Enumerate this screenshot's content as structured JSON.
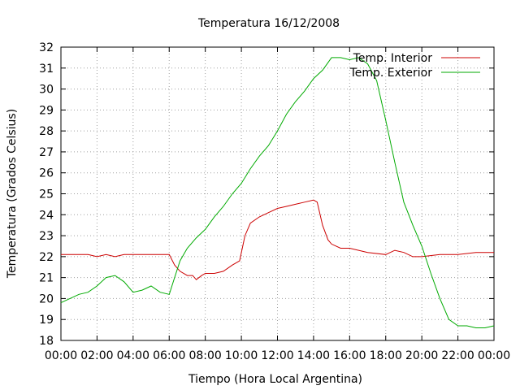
{
  "chart_data": {
    "type": "line",
    "title": "Temperatura 16/12/2008",
    "xlabel": "Tiempo (Hora Local Argentina)",
    "ylabel": "Temperatura (Grados Celsius)",
    "x_unit": "hour",
    "xlim": [
      0,
      24
    ],
    "ylim": [
      18,
      32
    ],
    "grid": true,
    "legend_position": "top-right",
    "x_ticks": [
      {
        "value": 0,
        "label": "00:00"
      },
      {
        "value": 2,
        "label": "02:00"
      },
      {
        "value": 4,
        "label": "04:00"
      },
      {
        "value": 6,
        "label": "06:00"
      },
      {
        "value": 8,
        "label": "08:00"
      },
      {
        "value": 10,
        "label": "10:00"
      },
      {
        "value": 12,
        "label": "12:00"
      },
      {
        "value": 14,
        "label": "14:00"
      },
      {
        "value": 16,
        "label": "16:00"
      },
      {
        "value": 18,
        "label": "18:00"
      },
      {
        "value": 20,
        "label": "20:00"
      },
      {
        "value": 22,
        "label": "22:00"
      },
      {
        "value": 24,
        "label": "00:00"
      }
    ],
    "y_ticks": [
      18,
      19,
      20,
      21,
      22,
      23,
      24,
      25,
      26,
      27,
      28,
      29,
      30,
      31,
      32
    ],
    "series": [
      {
        "name": "Temp. Interior",
        "color": "#cc0000",
        "x": [
          0,
          1,
          1.5,
          2,
          2.5,
          3,
          3.5,
          4,
          4.5,
          5,
          5.5,
          6,
          6.3,
          6.6,
          7,
          7.3,
          7.5,
          7.8,
          8,
          8.5,
          9,
          9.5,
          9.9,
          10.2,
          10.5,
          11,
          11.5,
          12,
          12.5,
          13,
          13.5,
          14,
          14.2,
          14.5,
          14.8,
          15,
          15.5,
          16,
          17,
          18,
          18.5,
          19,
          19.5,
          20,
          21,
          22,
          23,
          24
        ],
        "y": [
          22.1,
          22.1,
          22.1,
          22.0,
          22.1,
          22.0,
          22.1,
          22.1,
          22.1,
          22.1,
          22.1,
          22.1,
          21.6,
          21.3,
          21.1,
          21.1,
          20.9,
          21.1,
          21.2,
          21.2,
          21.3,
          21.6,
          21.8,
          23.0,
          23.6,
          23.9,
          24.1,
          24.3,
          24.4,
          24.5,
          24.6,
          24.7,
          24.6,
          23.5,
          22.8,
          22.6,
          22.4,
          22.4,
          22.2,
          22.1,
          22.3,
          22.2,
          22.0,
          22.0,
          22.1,
          22.1,
          22.2,
          22.2
        ]
      },
      {
        "name": "Temp. Exterior",
        "color": "#00aa00",
        "x": [
          0,
          0.5,
          1,
          1.5,
          2,
          2.5,
          3,
          3.5,
          4,
          4.5,
          5,
          5.5,
          6,
          6.3,
          6.6,
          7,
          7.5,
          8,
          8.5,
          9,
          9.5,
          10,
          10.5,
          11,
          11.5,
          12,
          12.5,
          13,
          13.5,
          14,
          14.5,
          15,
          15.5,
          16,
          16.5,
          17,
          17.5,
          18,
          18.5,
          19,
          19.5,
          20,
          20.5,
          21,
          21.5,
          22,
          22.5,
          23,
          23.5,
          24
        ],
        "y": [
          19.8,
          20.0,
          20.2,
          20.3,
          20.6,
          21.0,
          21.1,
          20.8,
          20.3,
          20.4,
          20.6,
          20.3,
          20.2,
          21.0,
          21.8,
          22.4,
          22.9,
          23.3,
          23.9,
          24.4,
          25.0,
          25.5,
          26.2,
          26.8,
          27.3,
          28.0,
          28.8,
          29.4,
          29.9,
          30.5,
          30.9,
          31.5,
          31.5,
          31.4,
          31.5,
          31.2,
          30.4,
          28.5,
          26.5,
          24.6,
          23.5,
          22.5,
          21.2,
          20.0,
          19.0,
          18.7,
          18.7,
          18.6,
          18.6,
          18.7
        ]
      }
    ]
  }
}
